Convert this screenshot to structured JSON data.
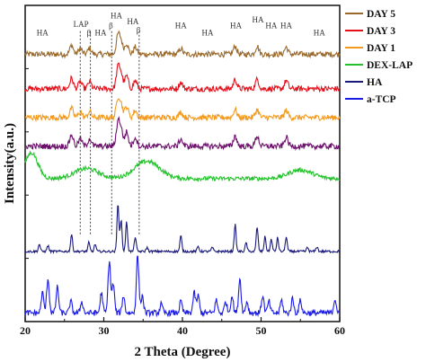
{
  "chart_data": {
    "type": "line",
    "xlabel": "2 Theta (Degree)",
    "ylabel": "Intensity(a.u.)",
    "xlim": [
      20,
      60
    ],
    "xticks": [
      "20",
      "30",
      "40",
      "50",
      "60"
    ],
    "y_ticks_shown": false,
    "legend_placement": "right",
    "series": [
      {
        "name": "DAY 5",
        "color": "#9a6a2c",
        "offset": 0.9
      },
      {
        "name": "DAY 3",
        "color": "#e4111c",
        "offset": 0.78
      },
      {
        "name": "DAY 1",
        "color": "#f39a1e",
        "offset": 0.68
      },
      {
        "name": "DEX-LAP",
        "color": "#22c32a",
        "offset": 0.47
      },
      {
        "name": "HA",
        "color": "#1a1a7a",
        "offset": 0.22
      },
      {
        "name": "a-TCP",
        "color": "#1a1ae6",
        "offset": 0.0
      }
    ],
    "extra_trace_color": "#6b0f6b",
    "extra_trace_offset": 0.58,
    "reference_lines_x": [
      27.0,
      28.3,
      31.0,
      34.5
    ],
    "annotations": [
      {
        "text": "HA",
        "x": 22.2,
        "y": 0.975
      },
      {
        "text": "LAP",
        "x": 27.1,
        "y": 1.005
      },
      {
        "text": "β",
        "x": 28.1,
        "y": 0.975
      },
      {
        "text": "HA",
        "x": 29.6,
        "y": 0.975
      },
      {
        "text": "HA",
        "x": 31.6,
        "y": 1.035
      },
      {
        "text": "β",
        "x": 30.9,
        "y": 1.0
      },
      {
        "text": "HA",
        "x": 33.7,
        "y": 1.015
      },
      {
        "text": "β",
        "x": 34.4,
        "y": 0.985
      },
      {
        "text": "HA",
        "x": 39.8,
        "y": 1.0
      },
      {
        "text": "HA",
        "x": 43.2,
        "y": 0.975
      },
      {
        "text": "HA",
        "x": 46.8,
        "y": 1.0
      },
      {
        "text": "HA",
        "x": 49.6,
        "y": 1.02
      },
      {
        "text": "HA",
        "x": 51.3,
        "y": 1.0
      },
      {
        "text": "HA",
        "x": 53.2,
        "y": 1.0
      },
      {
        "text": "HA",
        "x": 57.4,
        "y": 0.975
      }
    ]
  }
}
